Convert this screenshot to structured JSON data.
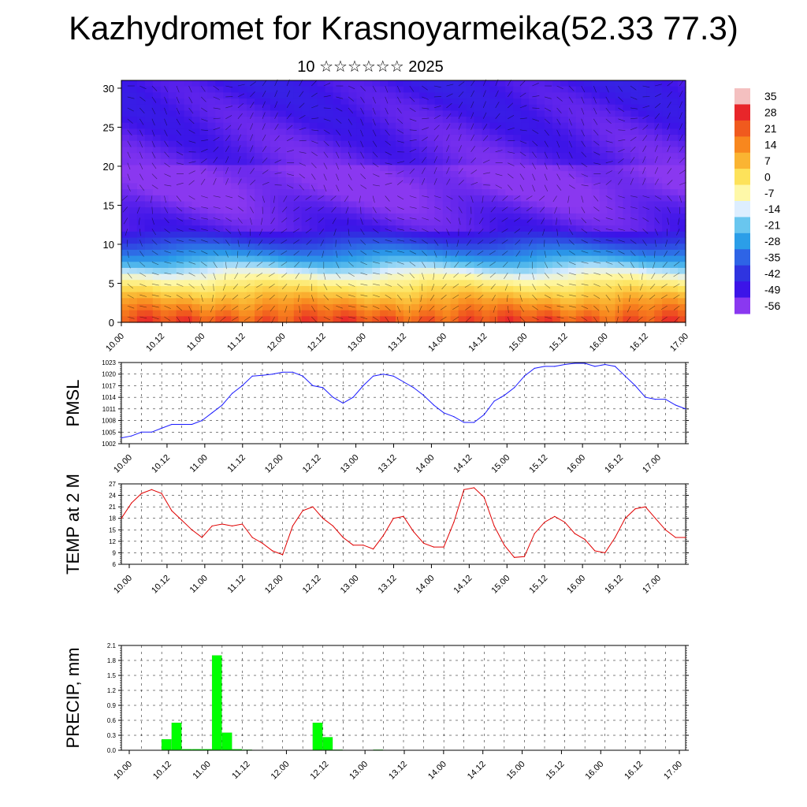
{
  "header": {
    "title": "Kazhydromet for Krasnoyarmeika(52.33 77.3)",
    "subtitle": "10 ☆☆☆☆☆☆ 2025"
  },
  "colors": {
    "pmsl_line": "#1a1aff",
    "temp_line": "#e00000",
    "precip_bar": "#00ff00",
    "grid": "#000000"
  },
  "time_labels": [
    "10.00",
    "10.12",
    "11.00",
    "11.12",
    "12.00",
    "12.12",
    "13.00",
    "13.12",
    "14.00",
    "14.12",
    "15.00",
    "15.12",
    "16.00",
    "16.12",
    "17.00"
  ],
  "chart_data": [
    {
      "type": "heatmap",
      "panel": "cross-section",
      "yticks": [
        "0",
        "5",
        "10",
        "15",
        "20",
        "25",
        "30"
      ],
      "ylim": [
        0,
        31
      ],
      "colorbar": {
        "labels": [
          "35",
          "28",
          "21",
          "14",
          "7",
          "0",
          "-7",
          "-14",
          "-21",
          "-28",
          "-35",
          "-42",
          "-49",
          "-56"
        ],
        "colors": [
          "#f4c0c0",
          "#e8262a",
          "#f05a1e",
          "#f8871e",
          "#fab432",
          "#fde25a",
          "#fef8a8",
          "#ddeeff",
          "#69c6ef",
          "#2b9ee8",
          "#2e64e6",
          "#2f34e0",
          "#3c14e8",
          "#8a38f0"
        ]
      },
      "overlay": "wind-barbs"
    },
    {
      "type": "line",
      "ylabel": "PMSL",
      "yticks": [
        "1023",
        "1020",
        "1017",
        "1014",
        "1011",
        "1008",
        "1005",
        "1002"
      ],
      "ylim": [
        1002,
        1023
      ],
      "x": [
        0,
        1,
        2,
        3,
        4,
        5,
        6,
        7,
        8,
        9,
        10,
        11,
        12,
        13,
        14,
        15,
        16,
        17,
        18,
        19,
        20,
        21,
        22,
        23,
        24,
        25,
        26,
        27,
        28,
        29,
        30,
        31,
        32,
        33,
        34,
        35,
        36,
        37,
        38,
        39,
        40,
        41,
        42,
        43,
        44,
        45,
        46,
        47,
        48,
        49,
        50,
        51,
        52,
        53,
        54,
        55,
        56
      ],
      "values": [
        1003.5,
        1004.0,
        1005.0,
        1005.0,
        1006.0,
        1007.0,
        1007.0,
        1007.0,
        1008.0,
        1010.0,
        1012.0,
        1015.0,
        1017.0,
        1019.5,
        1019.7,
        1020.0,
        1020.5,
        1020.5,
        1019.5,
        1017.0,
        1016.5,
        1014.0,
        1012.5,
        1014.0,
        1017.0,
        1019.5,
        1020.0,
        1019.5,
        1018.0,
        1016.5,
        1014.5,
        1012.0,
        1010.0,
        1009.0,
        1007.5,
        1007.5,
        1009.5,
        1013.0,
        1014.5,
        1016.5,
        1019.5,
        1021.5,
        1022.0,
        1022.0,
        1022.5,
        1022.8,
        1022.8,
        1022.0,
        1022.5,
        1022.0,
        1019.5,
        1017.0,
        1014.0,
        1013.5,
        1013.5,
        1012.0,
        1011.0
      ]
    },
    {
      "type": "line",
      "ylabel": "TEMP at 2 M",
      "yticks": [
        "27",
        "24",
        "21",
        "18",
        "15",
        "12",
        "9",
        "6"
      ],
      "ylim": [
        6,
        27
      ],
      "x": [
        0,
        1,
        2,
        3,
        4,
        5,
        6,
        7,
        8,
        9,
        10,
        11,
        12,
        13,
        14,
        15,
        16,
        17,
        18,
        19,
        20,
        21,
        22,
        23,
        24,
        25,
        26,
        27,
        28,
        29,
        30,
        31,
        32,
        33,
        34,
        35,
        36,
        37,
        38,
        39,
        40,
        41,
        42,
        43,
        44,
        45,
        46,
        47,
        48,
        49,
        50,
        51,
        52,
        53,
        54,
        55,
        56
      ],
      "values": [
        18.0,
        22.0,
        24.5,
        25.5,
        24.5,
        20.0,
        17.5,
        15.0,
        13.0,
        16.0,
        16.5,
        16.0,
        16.5,
        13.0,
        11.5,
        9.5,
        8.5,
        16.0,
        20.0,
        21.0,
        18.0,
        16.0,
        13.0,
        11.0,
        11.0,
        10.0,
        13.5,
        18.0,
        18.5,
        14.5,
        11.5,
        10.5,
        10.5,
        17.0,
        25.5,
        26.0,
        23.5,
        16.0,
        11.0,
        7.8,
        8.0,
        14.0,
        17.0,
        18.5,
        17.0,
        14.0,
        12.5,
        9.5,
        9.0,
        13.0,
        18.0,
        20.5,
        21.0,
        18.0,
        15.0,
        13.0,
        13.0
      ]
    },
    {
      "type": "bar",
      "ylabel": "PRECIP, mm",
      "yticks": [
        "2.1",
        "1.8",
        "1.5",
        "1.2",
        "0.9",
        "0.6",
        "0.3",
        "0.0"
      ],
      "ylim": [
        0,
        2.1
      ],
      "x": [
        4,
        5,
        6,
        7,
        8,
        9,
        10,
        11,
        12,
        19,
        20,
        21,
        25
      ],
      "values": [
        0.22,
        0.55,
        0.02,
        0.02,
        0.02,
        1.9,
        0.35,
        0.02,
        0.01,
        0.55,
        0.26,
        0.01,
        0.01
      ]
    }
  ]
}
